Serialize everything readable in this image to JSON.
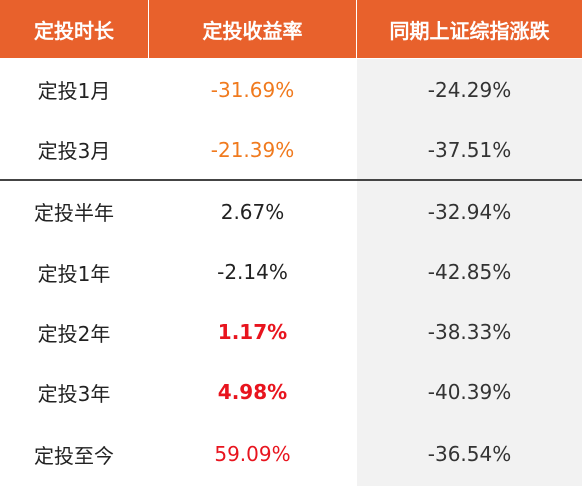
{
  "table": {
    "header": [
      "定投时长",
      "定投收益率",
      "同期上证综指涨跌"
    ],
    "rows": [
      [
        "定投1月",
        "-31.69%",
        "-24.29%"
      ],
      [
        "定投3月",
        "-21.39%",
        "-37.51%"
      ],
      [
        "定投半年",
        "2.67%",
        "-32.94%"
      ],
      [
        "定投1年",
        "-2.14%",
        "-42.85%"
      ],
      [
        "定投2年",
        "1.17%",
        "-38.33%"
      ],
      [
        "定投3年",
        "4.98%",
        "-40.39%"
      ],
      [
        "定投至今",
        "59.09%",
        "-36.54%"
      ]
    ]
  }
}
